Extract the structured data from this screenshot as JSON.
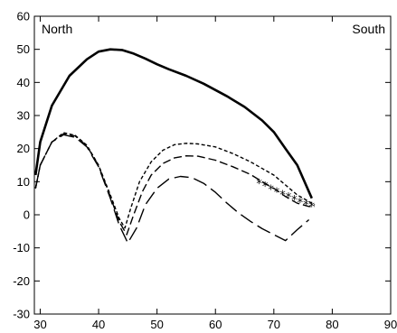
{
  "chart_data": {
    "type": "line",
    "xlim": [
      29,
      90
    ],
    "ylim": [
      -30,
      60
    ],
    "xticks": [
      30,
      40,
      50,
      60,
      70,
      80,
      90
    ],
    "yticks": [
      -30,
      -20,
      -10,
      0,
      10,
      20,
      30,
      40,
      50,
      60
    ],
    "grid": false,
    "legend": "none",
    "annotations": [
      {
        "text": "North",
        "position": "top-left"
      },
      {
        "text": "South",
        "position": "top-right"
      }
    ],
    "series": [
      {
        "style": "solid-thick",
        "x": [
          29.2,
          30,
          32,
          35,
          38,
          40,
          42,
          44,
          46,
          48,
          50,
          52,
          55,
          58,
          62,
          65,
          68,
          70,
          72,
          74,
          76.5
        ],
        "y": [
          12,
          22,
          33,
          42,
          47,
          49.3,
          50,
          49.8,
          48.7,
          47.2,
          45.5,
          44,
          42,
          39.6,
          35.8,
          32.6,
          28.5,
          25,
          20,
          15,
          5
        ]
      },
      {
        "style": "dotted",
        "x": [
          29.2,
          30,
          32,
          34,
          36,
          38,
          40,
          42,
          43.5,
          44.5,
          45.5,
          47,
          49,
          51,
          53,
          55,
          57,
          60,
          63,
          66,
          68,
          70,
          72,
          74,
          76,
          77
        ],
        "y": [
          8,
          15,
          22,
          24.8,
          24,
          21,
          15,
          6,
          -1,
          -4,
          2,
          10,
          16,
          19.5,
          21.2,
          21.6,
          21.4,
          20.5,
          18.5,
          16,
          14,
          12,
          9,
          6,
          4,
          3
        ]
      },
      {
        "style": "dashed",
        "x": [
          29.2,
          30,
          32,
          34,
          36,
          38,
          40,
          42,
          43.5,
          44.8,
          46,
          47.5,
          49,
          51,
          53,
          55,
          57,
          60,
          63,
          66,
          68,
          70,
          72,
          74,
          76,
          77
        ],
        "y": [
          8,
          15,
          22,
          24.5,
          23.8,
          20.8,
          14.8,
          5.5,
          -2,
          -6,
          0,
          7,
          12,
          15.5,
          17.2,
          17.8,
          17.7,
          16.5,
          14.5,
          12.2,
          10,
          8,
          5.5,
          3.5,
          2.5,
          2.5
        ]
      },
      {
        "style": "long-dash",
        "x": [
          29.2,
          30,
          32,
          34,
          36,
          38,
          40,
          42,
          43.5,
          45,
          46.5,
          48,
          50,
          52,
          54,
          56,
          58,
          60,
          62,
          64,
          66,
          68,
          70,
          72,
          74,
          76
        ],
        "y": [
          8,
          15,
          22,
          24.2,
          23.4,
          20.5,
          14.5,
          5,
          -3,
          -8.5,
          -4,
          3,
          8,
          10.8,
          11.6,
          11.2,
          9.5,
          6.8,
          3.5,
          0.5,
          -2,
          -4.2,
          -6,
          -7.8,
          -4.5,
          -1.5
        ]
      },
      {
        "style": "stars",
        "x": [
          67.5,
          68.5,
          69.5,
          70.5,
          71.5,
          72.5,
          73.5,
          74.5,
          75.5,
          76.5
        ],
        "y": [
          9.5,
          8.7,
          7.8,
          7,
          6.2,
          5.4,
          4.6,
          3.8,
          3.1,
          2.6
        ]
      }
    ]
  }
}
